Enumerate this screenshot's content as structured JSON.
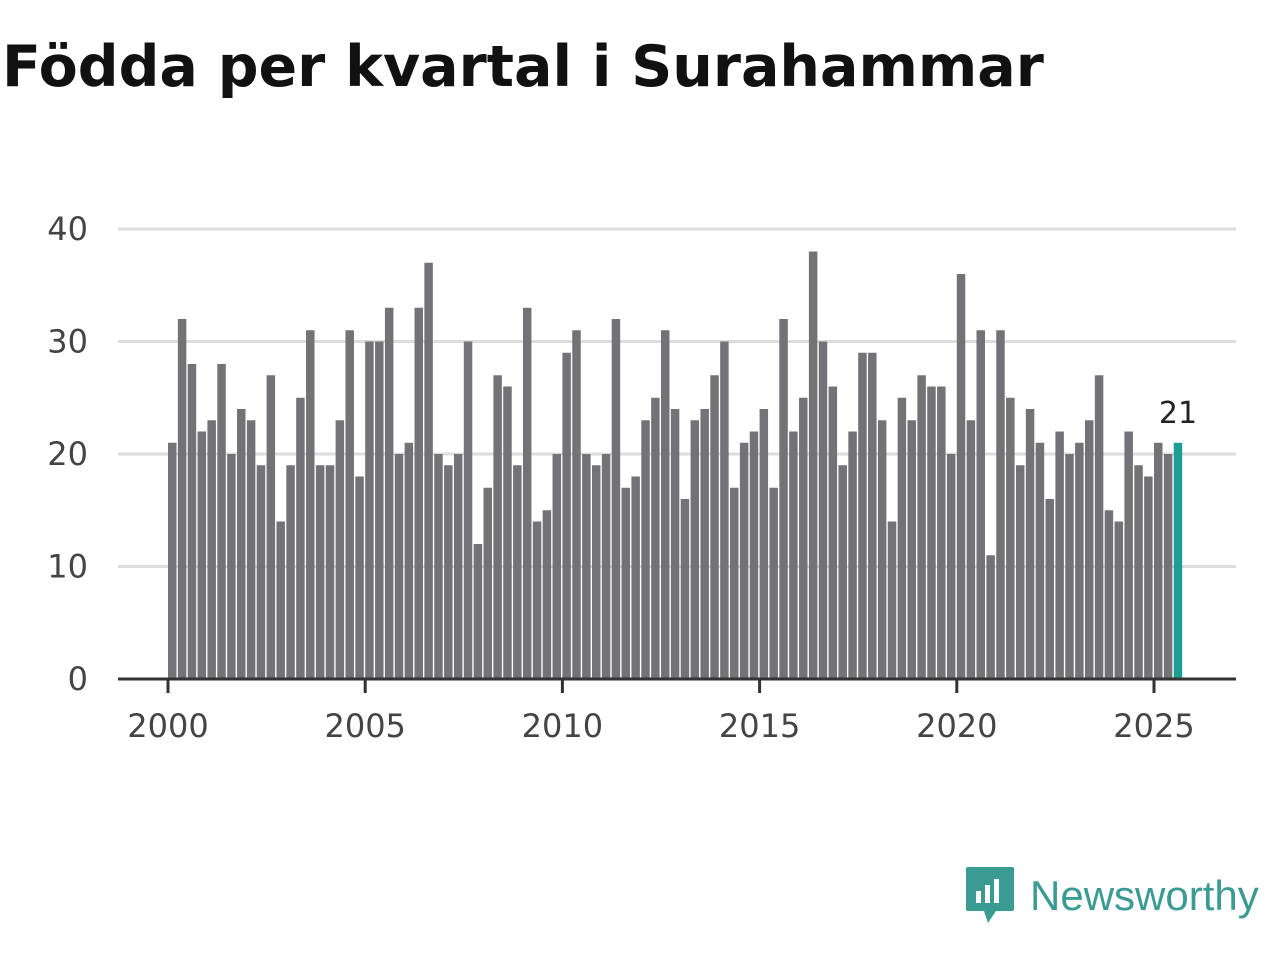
{
  "chart_data": {
    "type": "bar",
    "title": "Födda per kvartal i Surahammar",
    "xlabel": "",
    "ylabel": "",
    "ylim": [
      0,
      40
    ],
    "yticks": [
      0,
      10,
      20,
      30,
      40
    ],
    "xticks": [
      "2000",
      "2005",
      "2010",
      "2015",
      "2020",
      "2025"
    ],
    "start_year": 2000,
    "periods_per_year": 4,
    "grid": true,
    "colors": {
      "bar": "#737276",
      "highlight": "#1b9e94",
      "grid": "#dddddd",
      "axis": "#333333"
    },
    "highlight_label": "21",
    "values": [
      21,
      32,
      28,
      22,
      23,
      28,
      20,
      24,
      23,
      19,
      27,
      14,
      19,
      25,
      31,
      19,
      19,
      23,
      31,
      18,
      30,
      30,
      33,
      20,
      21,
      33,
      37,
      20,
      19,
      20,
      30,
      12,
      17,
      27,
      26,
      19,
      33,
      14,
      15,
      20,
      29,
      31,
      20,
      19,
      20,
      32,
      17,
      18,
      23,
      25,
      31,
      24,
      16,
      23,
      24,
      27,
      30,
      17,
      21,
      22,
      24,
      17,
      32,
      22,
      25,
      38,
      30,
      26,
      19,
      22,
      29,
      29,
      23,
      14,
      25,
      23,
      27,
      26,
      26,
      20,
      36,
      23,
      31,
      11,
      31,
      25,
      19,
      24,
      21,
      16,
      22,
      20,
      21,
      23,
      27,
      15,
      14,
      22,
      19,
      18,
      21,
      20,
      21
    ]
  },
  "logo": {
    "text": "Newsworthy",
    "icon": "newsworthy-chart-icon",
    "color": "#3a9b93"
  }
}
